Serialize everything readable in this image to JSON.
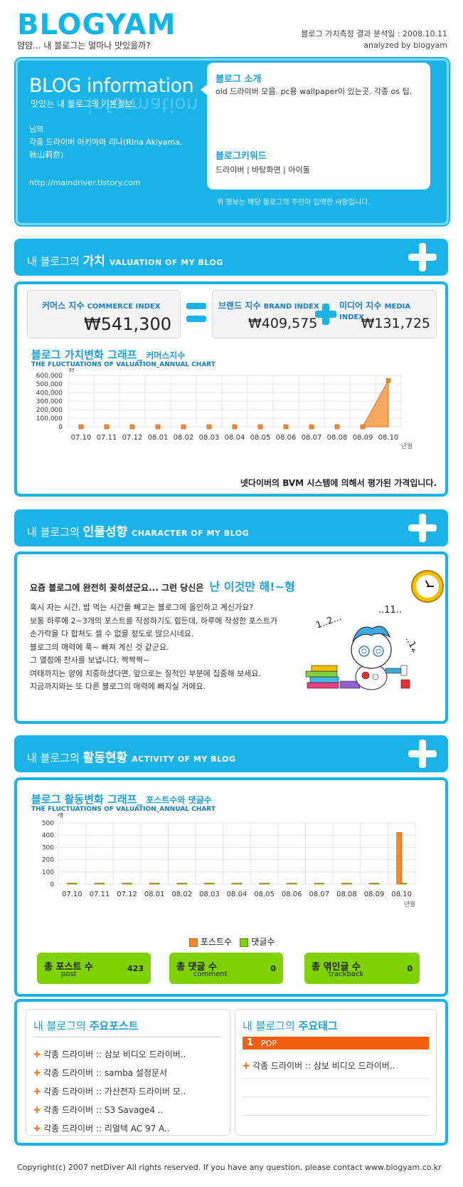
{
  "header": {
    "logo": "BLOGYAM",
    "tagline": "얌얌... 내 블로그는 얼마나 맛있을까?",
    "date_line": "블로그 가치측정 결과 분석일 : 2008.10.11",
    "analyzed_by": "analyzed by blogyam"
  },
  "info": {
    "title": "BLOG information",
    "title_shadow": "information",
    "subtitle": "맛있는 내 블로그의 기본정보",
    "owner": "님의",
    "blog_name": "각종 드라이버 아키아마 리나(Rina Akiyama, 秋山莉奈)",
    "url": "http://maindriver.tistory.com",
    "intro_label": "블로그 소개",
    "intro_text": "old 드라이버 모음. pc용 wallpaper이 있는곳. 각종 os 팁.",
    "keyword_label": "블로그키워드",
    "keyword_text": "드라이버 | 바탕화면 | 아이돌",
    "note": "위 정보는 해당 블로그의 주인이 입력한 사항입니다."
  },
  "valuation": {
    "bar_prefix": "내 블로그의",
    "bar_title": "가치",
    "bar_sub": "VALUATION OF MY BLOG",
    "commerce_label": "커머스 지수",
    "commerce_label_en": "COMMERCE INDEX",
    "commerce_value": "₩541,300",
    "brand_label": "브랜드 지수",
    "brand_label_en": "BRAND INDEX",
    "brand_value": "₩409,575",
    "media_label": "미디어 지수",
    "media_label_en": "MEDIA INDEX",
    "media_value": "₩131,725",
    "chart_title": "블로그 가치변화 그래프_",
    "chart_title_small": "커머스지수",
    "chart_sub": "THE FLUCTUATIONS OF VALUATION_ANNUAL CHART",
    "unit": "원",
    "xunit": "년월",
    "footnote": "넷다이버의 BVM 시스템에 의해서 평가된 가격입니다."
  },
  "character": {
    "bar_prefix": "내 블로그의",
    "bar_title": "인물성향",
    "bar_sub": "CHARACTER OF MY BLOG",
    "headline": "요즘 블로그에 완전히 꽂히셨군요... 그런 당신은",
    "type": "난 이것만 해!~형",
    "lines": [
      "혹시 자는 시간, 밥 먹는 시간을 빼고는 블로그에 올인하고 계신가요?",
      "보통 하루에 2~3개의 포스트를 작성하기도 힘든데, 하루에 작성한 포스트가",
      "손가락을 다 합쳐도 셀 수 없을 정도로 많으시네요.",
      "블로그의 매력에 푹~ 빠져 계신 것 같군요.",
      "그 열정에 찬사를 보냅니다. 짝짝짝~",
      "여태까지는 양에 치중하셨다면, 앞으로는 질적인 부분에 집중해 보세요.",
      "지금까지와는 또 다른 블로그의 매력에 빠지실 거에요."
    ],
    "doodle1": "1..2...",
    "doodle2": "..11..",
    "doodle3": "..12"
  },
  "activity": {
    "bar_prefix": "내 블로그의",
    "bar_title": "활동현황",
    "bar_sub": "ACTIVITY OF MY BLOG",
    "chart_title": "블로그 활동변화 그래프_",
    "chart_title_small": "포스트수와 댓글수",
    "chart_sub": "THE FLUCTUATIONS OF VALUATION_ANNUAL CHART",
    "unit": "개",
    "xunit": "년월",
    "posts_label": "총 포스트 수",
    "posts_sub": "post",
    "posts_value": "423",
    "comments_label": "총 댓글 수",
    "comments_sub": "comment",
    "comments_value": "0",
    "trackback_label": "총 엮인글 수",
    "trackback_sub": "trackback",
    "trackback_value": "0"
  },
  "posts": {
    "prefix": "내 블로그의",
    "title": "주요포스트",
    "items": [
      "각종 드라이버 :: 삼보 비디오 드라이버..",
      "각종 드라이버 :: samba 설정문서",
      "각종 드라이버 :: 가산전자 드라이버 모..",
      "각종 드라이버 :: S3 Savage4 ..",
      "각종 드라이버 :: 리얼텍 AC 97 A.."
    ]
  },
  "tags": {
    "prefix": "내 블로그의",
    "title": "주요태그",
    "rank": "1",
    "top_tag": "POP",
    "items": [
      "각종 드라이버 :: 삼보 비디오 드라이버.."
    ]
  },
  "footer": {
    "text": "Copyright(c) 2007 netDiver All rights reserved. If you have any question, please contact www.blogyam.co.kr"
  },
  "colors": {
    "accent": "#1ab3e8",
    "orange": "#f5892a",
    "green": "#7fd100"
  },
  "chart_data": [
    {
      "type": "area",
      "title": "블로그 가치변화 그래프_ 커머스지수",
      "ylabel": "원",
      "xlabel": "년월",
      "categories": [
        "07.10",
        "07.11",
        "07.12",
        "08.01",
        "08.02",
        "08.03",
        "08.04",
        "08.05",
        "08.06",
        "08.07",
        "08.08",
        "08.09",
        "08.10"
      ],
      "values": [
        0,
        0,
        0,
        0,
        0,
        0,
        0,
        0,
        0,
        0,
        0,
        0,
        541300
      ],
      "ylim": [
        0,
        600000
      ],
      "yticks": [
        "600,000",
        "500,000",
        "400,000",
        "300,000",
        "200,000",
        "100,000",
        "0"
      ],
      "grid": true
    },
    {
      "type": "bar",
      "title": "블로그 활동변화 그래프_ 포스트수와 댓글수",
      "ylabel": "개",
      "xlabel": "년월",
      "categories": [
        "07.10",
        "07.11",
        "07.12",
        "08.01",
        "08.02",
        "08.03",
        "08.04",
        "08.05",
        "08.06",
        "08.07",
        "08.08",
        "08.09",
        "08.10"
      ],
      "series": [
        {
          "name": "포스트수",
          "values": [
            0,
            0,
            0,
            0,
            0,
            0,
            0,
            0,
            0,
            0,
            0,
            0,
            423
          ]
        },
        {
          "name": "댓글수",
          "values": [
            0,
            0,
            0,
            0,
            0,
            0,
            0,
            0,
            0,
            0,
            0,
            0,
            0
          ]
        }
      ],
      "ylim": [
        0,
        500
      ],
      "yticks": [
        "500",
        "400",
        "300",
        "200",
        "100",
        "0"
      ],
      "legend": "bottom",
      "grid": true
    }
  ]
}
